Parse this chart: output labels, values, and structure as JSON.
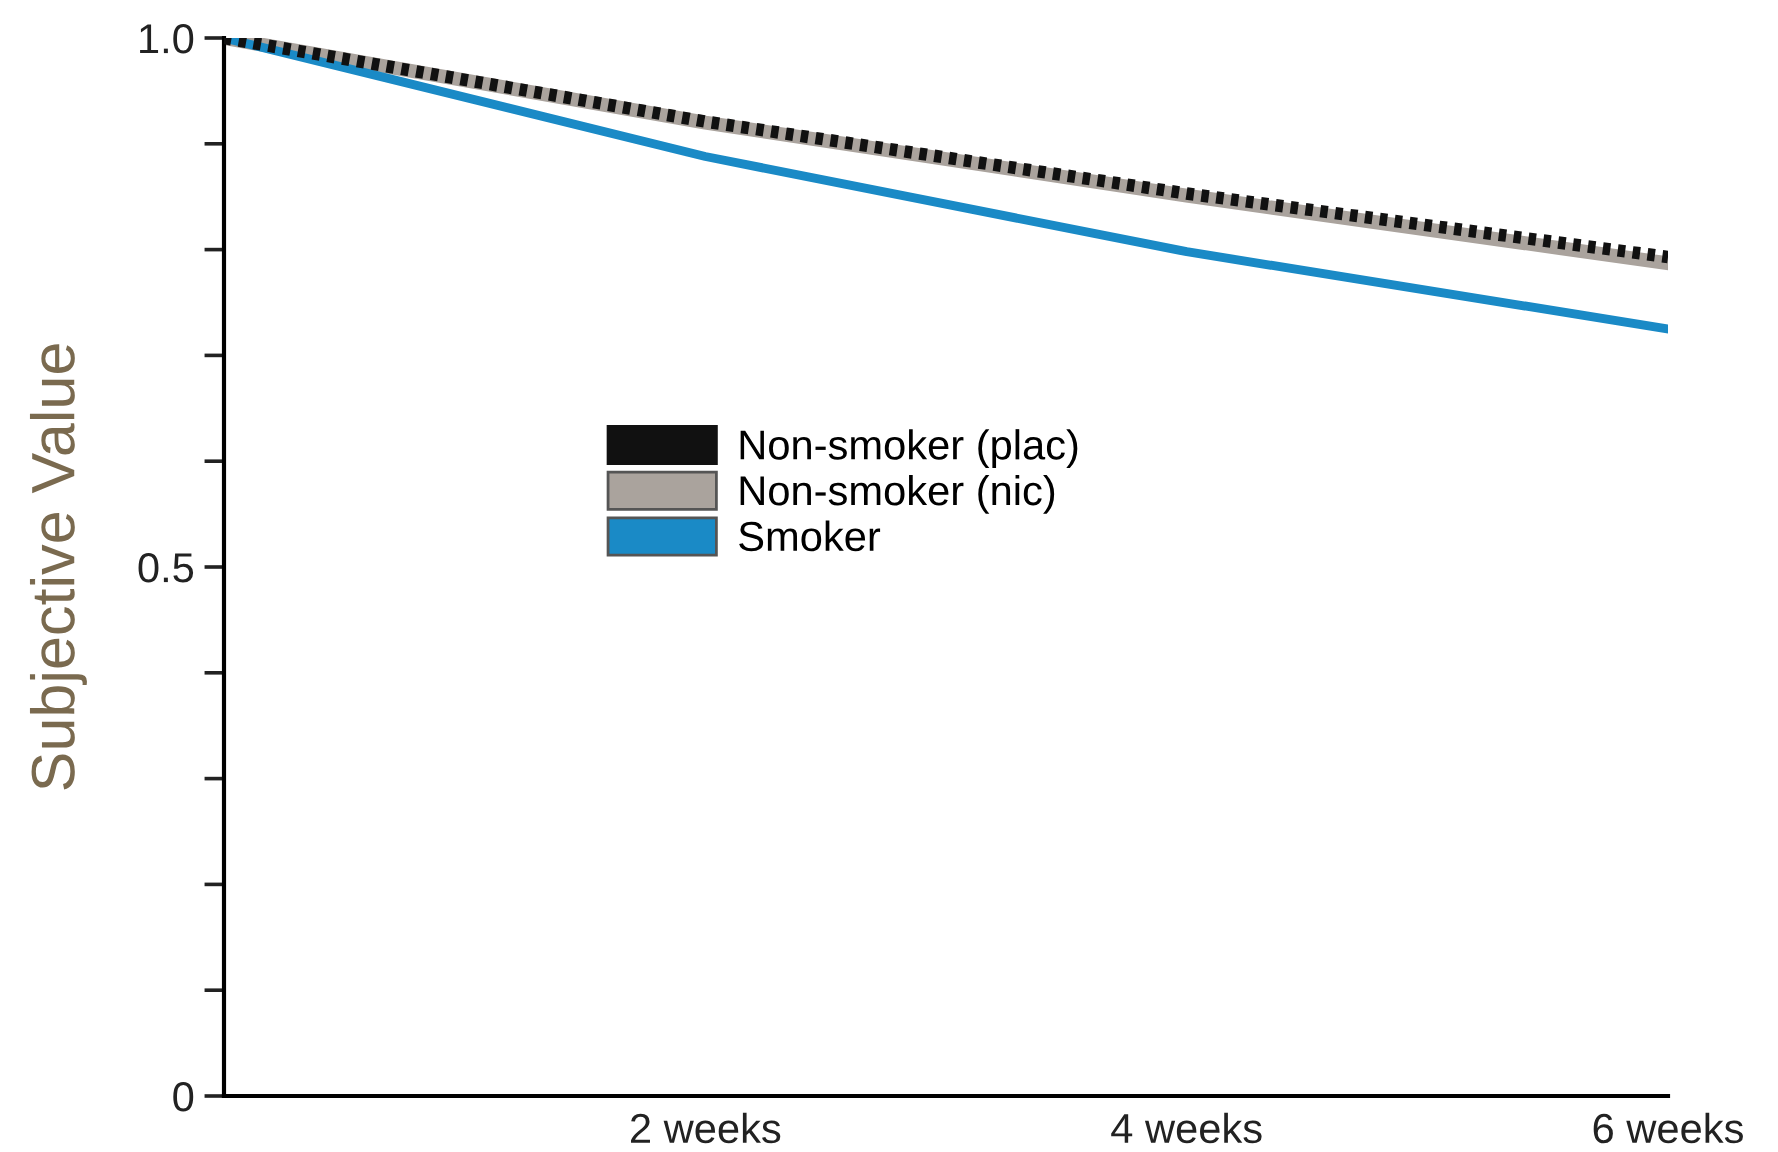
{
  "chart_data": {
    "type": "line",
    "ylabel": "Subjective Value",
    "x": [
      0,
      2,
      4,
      6
    ],
    "xlim": [
      0,
      6
    ],
    "xticks": [
      {
        "value": 0,
        "label": null
      },
      {
        "value": 2,
        "label": "2 weeks"
      },
      {
        "value": 4,
        "label": "4 weeks"
      },
      {
        "value": 6,
        "label": "6 weeks"
      }
    ],
    "ylim": [
      0,
      1
    ],
    "yticks": [
      0,
      {
        "value": 0.1,
        "label": null
      },
      {
        "value": 0.2,
        "label": null
      },
      {
        "value": 0.3,
        "label": null
      },
      {
        "value": 0.4,
        "label": null
      },
      0.5,
      {
        "value": 0.6,
        "label": null
      },
      {
        "value": 0.7,
        "label": null
      },
      {
        "value": 0.8,
        "label": null
      },
      {
        "value": 0.9,
        "label": null
      },
      {
        "value": 1,
        "label": "1.0"
      }
    ],
    "series": [
      {
        "name": "Non-smoker (nic)",
        "color": "#aaa39d",
        "line_style": "solid",
        "values": [
          1.0,
          0.92,
          0.851,
          0.787
        ]
      },
      {
        "name": "Non-smoker (plac)",
        "color": "#111111",
        "line_style": "dotted",
        "values": [
          1.0,
          0.921,
          0.853,
          0.793
        ]
      },
      {
        "name": "Smoker",
        "color": "#1a8ac6",
        "line_style": "solid",
        "values": [
          1.0,
          0.888,
          0.798,
          0.725
        ]
      }
    ],
    "legend": "center left",
    "grid": false,
    "marker": "none"
  }
}
